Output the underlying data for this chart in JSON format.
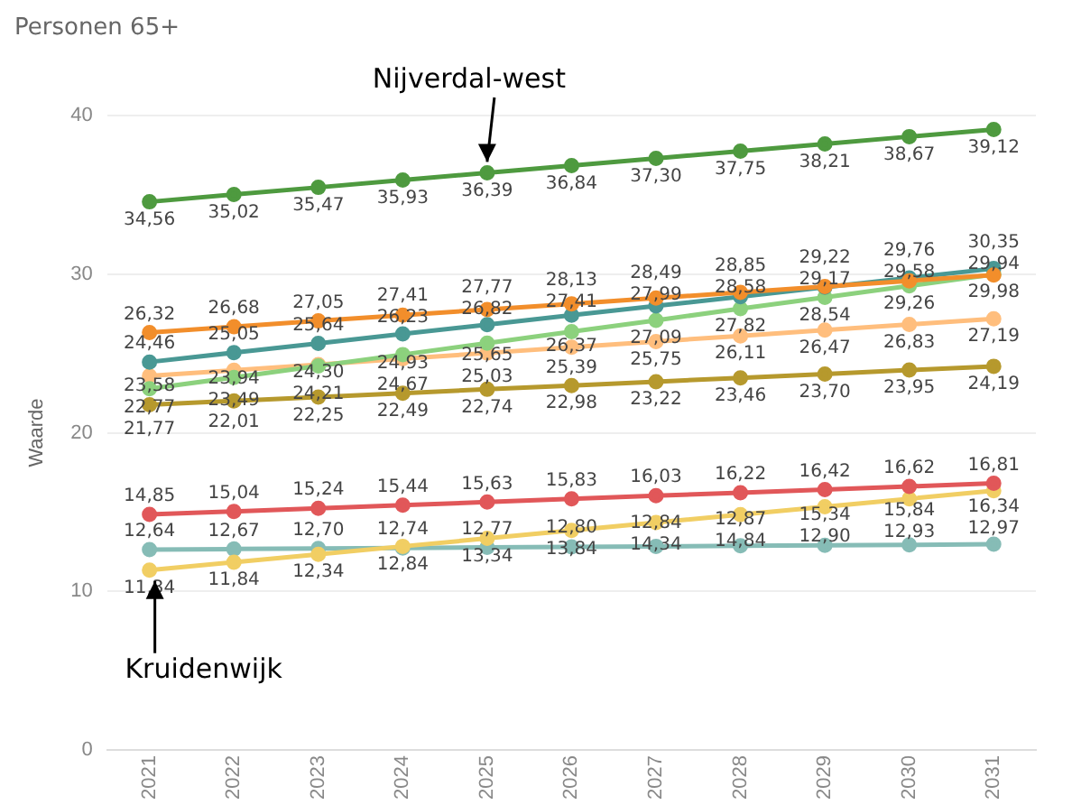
{
  "chart_data": {
    "type": "line",
    "title": "Personen 65+",
    "ylabel": "Waarde",
    "categories": [
      "2021",
      "2022",
      "2023",
      "2024",
      "2025",
      "2026",
      "2027",
      "2028",
      "2029",
      "2030",
      "2031"
    ],
    "series": [
      {
        "color": "#4e9a3f",
        "values": [
          34.56,
          35.02,
          35.47,
          35.93,
          36.39,
          36.84,
          37.3,
          37.75,
          38.21,
          38.67,
          39.12
        ],
        "value_labels": [
          "34,56",
          "35,02",
          "35,47",
          "35,93",
          "36,39",
          "36,84",
          "37,30",
          "37,75",
          "38,21",
          "38,67",
          "39,12"
        ]
      },
      {
        "color": "#f28e2b",
        "values": [
          26.32,
          26.68,
          27.05,
          27.41,
          27.77,
          28.13,
          28.49,
          28.85,
          29.22,
          29.58,
          29.94
        ],
        "value_labels": [
          "26,32",
          "26,68",
          "27,05",
          "27,41",
          "27,77",
          "28,13",
          "28,49",
          "28,85",
          "29,22",
          "29,58",
          "29,94"
        ]
      },
      {
        "color": "#499894",
        "values": [
          24.46,
          25.05,
          25.64,
          26.23,
          26.82,
          27.41,
          27.99,
          28.58,
          29.17,
          29.76,
          30.35
        ],
        "value_labels": [
          "24,46",
          "25,05",
          "25,64",
          "26,23",
          "26,82",
          "27,41",
          "27,99",
          "28,58",
          "29,17",
          "29,76",
          "30,35"
        ]
      },
      {
        "color": "#8cd17d",
        "values": [
          22.77,
          23.49,
          24.21,
          24.93,
          25.65,
          26.37,
          27.09,
          27.82,
          28.54,
          29.26,
          29.98
        ],
        "value_labels": [
          "22,77",
          "23,49",
          "24,21",
          "24,93",
          "25,65",
          "26,37",
          "27,09",
          "27,82",
          "28,54",
          "29,26",
          "29,98"
        ]
      },
      {
        "color": "#ffbe7d",
        "values": [
          23.58,
          23.94,
          24.3,
          24.67,
          25.03,
          25.39,
          25.75,
          26.11,
          26.47,
          26.83,
          27.19
        ],
        "value_labels": [
          "23,58",
          "23,94",
          "24,30",
          "24,67",
          "25,03",
          "25,39",
          "25,75",
          "26,11",
          "26,47",
          "26,83",
          "27,19"
        ]
      },
      {
        "color": "#b6992d",
        "values": [
          21.77,
          22.01,
          22.25,
          22.49,
          22.74,
          22.98,
          23.22,
          23.46,
          23.7,
          23.95,
          24.19
        ],
        "value_labels": [
          "21,77",
          "22,01",
          "22,25",
          "22,49",
          "22,74",
          "22,98",
          "23,22",
          "23,46",
          "23,70",
          "23,95",
          "24,19"
        ]
      },
      {
        "color": "#e15759",
        "values": [
          14.85,
          15.04,
          15.24,
          15.44,
          15.63,
          15.83,
          16.03,
          16.22,
          16.42,
          16.62,
          16.81
        ],
        "value_labels": [
          "14,85",
          "15,04",
          "15,24",
          "15,44",
          "15,63",
          "15,83",
          "16,03",
          "16,22",
          "16,42",
          "16,62",
          "16,81"
        ]
      },
      {
        "color": "#f1ce63",
        "values": [
          11.34,
          11.84,
          12.34,
          12.84,
          13.34,
          13.84,
          14.34,
          14.84,
          15.34,
          15.84,
          16.34
        ],
        "value_labels": [
          "11,34",
          "11,84",
          "12,34",
          "12,84",
          "13,34",
          "13,84",
          "14,34",
          "14,84",
          "15,34",
          "15,84",
          "16,34"
        ]
      },
      {
        "color": "#86bcb6",
        "values": [
          12.64,
          12.67,
          12.7,
          12.74,
          12.77,
          12.8,
          12.84,
          12.87,
          12.9,
          12.93,
          12.97
        ],
        "value_labels": [
          "12,64",
          "12,67",
          "12,70",
          "12,74",
          "12,77",
          "12,80",
          "12,84",
          "12,87",
          "12,90",
          "12,93",
          "12,97"
        ]
      }
    ],
    "ylim": [
      0,
      40
    ],
    "yticks": [
      0,
      10,
      20,
      30,
      40
    ],
    "grid": "y",
    "legend": false,
    "marker": "circle",
    "line_style": "solid",
    "annotations": [
      {
        "text": "Nijverdal-west",
        "x": "2025",
        "y": 36.39
      },
      {
        "text": "Kruidenwijk",
        "x": "2021",
        "y": 11.34
      }
    ]
  }
}
